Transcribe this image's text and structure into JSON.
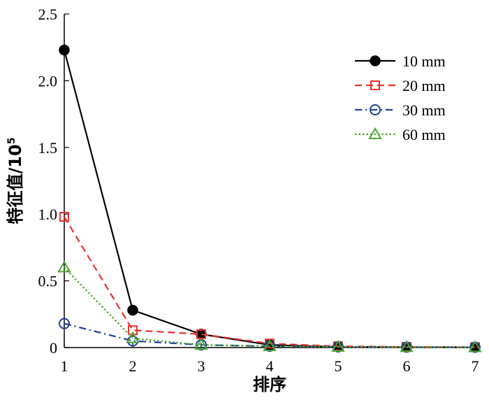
{
  "chart_data": {
    "type": "line",
    "x": [
      1,
      2,
      3,
      4,
      5,
      6,
      7
    ],
    "xlabel": "排序",
    "ylabel": "特征值/10",
    "ylabel_sup": "5",
    "xlim": [
      1,
      7
    ],
    "ylim": [
      0,
      2.5
    ],
    "x_ticks": [
      "1",
      "2",
      "3",
      "4",
      "5",
      "6",
      "7"
    ],
    "y_ticks": [
      "0",
      "0.5",
      "1.0",
      "1.5",
      "2.0",
      "2.5"
    ],
    "y_tick_values": [
      0,
      0.5,
      1.0,
      1.5,
      2.0,
      2.5
    ],
    "grid": false,
    "legend_position": "top-right",
    "series": [
      {
        "name": "10 mm",
        "values": [
          2.23,
          0.28,
          0.1,
          0.02,
          0.005,
          0.003,
          0.002
        ],
        "color": "#000000",
        "marker": "circle-filled",
        "line": "solid"
      },
      {
        "name": "20 mm",
        "values": [
          0.98,
          0.13,
          0.1,
          0.03,
          0.01,
          0.005,
          0.003
        ],
        "color": "#e8312f",
        "marker": "square-open",
        "line": "dashed"
      },
      {
        "name": "30 mm",
        "values": [
          0.18,
          0.05,
          0.02,
          0.01,
          0.005,
          0.003,
          0.002
        ],
        "color": "#1f3f9a",
        "marker": "circle-open",
        "line": "dashdot"
      },
      {
        "name": "60 mm",
        "values": [
          0.6,
          0.07,
          0.02,
          0.01,
          0.005,
          0.003,
          0.002
        ],
        "color": "#4ca832",
        "marker": "triangle-open",
        "line": "dotted"
      }
    ]
  }
}
